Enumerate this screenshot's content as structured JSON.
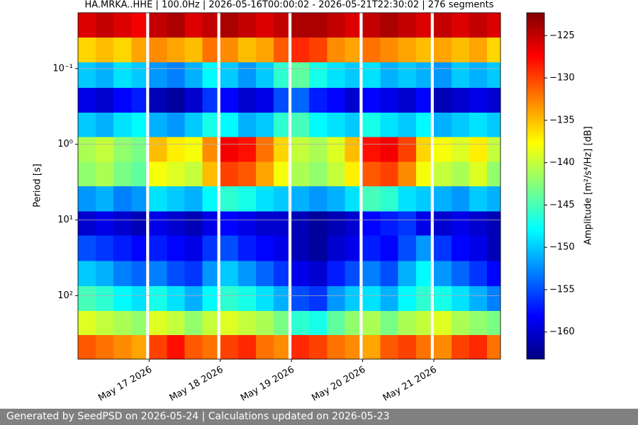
{
  "chart_data": {
    "type": "heatmap",
    "title": "HA.MRKA..HHE | 100.0Hz | 2026-05-16T00:00:02 - 2026-05-21T22:30:02 | 276 segments",
    "ylabel": "Period [s]",
    "colorbar_label": "Amplitude [m²/s⁴/Hz] [dB]",
    "colormap": "jet",
    "yscale": "log",
    "y_inverted": true,
    "grid": true,
    "xlim": [
      "2026-05-16T00:00",
      "2026-05-21T22:30"
    ],
    "ylim": [
      0.0183,
      690
    ],
    "clim": [
      -163.2,
      -122.3
    ],
    "xticks": [
      {
        "value": "2026-05-17T00:00",
        "label": "May 17 2026"
      },
      {
        "value": "2026-05-18T00:00",
        "label": "May 18 2026"
      },
      {
        "value": "2026-05-19T00:00",
        "label": "May 19 2026"
      },
      {
        "value": "2026-05-20T00:00",
        "label": "May 20 2026"
      },
      {
        "value": "2026-05-21T00:00",
        "label": "May 21 2026"
      }
    ],
    "yticks": [
      {
        "value": 0.1,
        "label": "10⁻¹"
      },
      {
        "value": 1,
        "label": "10⁰"
      },
      {
        "value": 10,
        "label": "10¹"
      },
      {
        "value": 100,
        "label": "10²"
      }
    ],
    "cticks": [
      {
        "value": -125,
        "label": "−125"
      },
      {
        "value": -130,
        "label": "−130"
      },
      {
        "value": -135,
        "label": "−135"
      },
      {
        "value": -140,
        "label": "−140"
      },
      {
        "value": -145,
        "label": "−145"
      },
      {
        "value": -150,
        "label": "−150"
      },
      {
        "value": -155,
        "label": "−155"
      },
      {
        "value": -160,
        "label": "−160"
      }
    ],
    "x_bins": [
      "2026-05-16T00:00",
      "2026-05-16T06:00",
      "2026-05-16T12:00",
      "2026-05-16T18:00",
      "2026-05-17T00:00",
      "2026-05-17T06:00",
      "2026-05-17T12:00",
      "2026-05-17T18:00",
      "2026-05-18T00:00",
      "2026-05-18T06:00",
      "2026-05-18T12:00",
      "2026-05-18T18:00",
      "2026-05-19T00:00",
      "2026-05-19T06:00",
      "2026-05-19T12:00",
      "2026-05-19T18:00",
      "2026-05-20T00:00",
      "2026-05-20T06:00",
      "2026-05-20T12:00",
      "2026-05-20T18:00",
      "2026-05-21T00:00",
      "2026-05-21T06:00",
      "2026-05-21T12:00",
      "2026-05-21T18:00",
      "2026-05-21T22:30"
    ],
    "y_bins": [
      0.0183,
      0.039,
      0.083,
      0.18,
      0.38,
      0.8,
      1.7,
      3.6,
      7.7,
      16,
      35,
      75,
      160,
      330,
      690
    ],
    "z": [
      [
        -126,
        -125,
        -126,
        -127,
        -125,
        -124,
        -126,
        -125,
        -124,
        -125,
        -126,
        -125,
        -124,
        -124,
        -125,
        -126,
        -125,
        -124,
        -125,
        -126,
        -125,
        -126,
        -125,
        -126
      ],
      [
        -136,
        -135,
        -136,
        -134,
        -133,
        -134,
        -135,
        -132,
        -133,
        -135,
        -134,
        -131,
        -129,
        -130,
        -133,
        -134,
        -132,
        -133,
        -134,
        -135,
        -134,
        -135,
        -134,
        -136
      ],
      [
        -150,
        -151,
        -149,
        -150,
        -152,
        -153,
        -151,
        -148,
        -150,
        -152,
        -150,
        -146,
        -144,
        -147,
        -149,
        -150,
        -149,
        -151,
        -150,
        -151,
        -152,
        -150,
        -151,
        -150
      ],
      [
        -159,
        -160,
        -158,
        -157,
        -161,
        -162,
        -160,
        -156,
        -158,
        -160,
        -159,
        -155,
        -154,
        -157,
        -158,
        -160,
        -158,
        -159,
        -160,
        -158,
        -161,
        -160,
        -159,
        -160
      ],
      [
        -150,
        -151,
        -149,
        -148,
        -151,
        -152,
        -150,
        -147,
        -148,
        -151,
        -150,
        -146,
        -145,
        -148,
        -149,
        -150,
        -147,
        -149,
        -150,
        -148,
        -151,
        -150,
        -149,
        -150
      ],
      [
        -141,
        -140,
        -142,
        -143,
        -135,
        -137,
        -138,
        -133,
        -127,
        -128,
        -132,
        -136,
        -140,
        -141,
        -139,
        -135,
        -128,
        -127,
        -130,
        -136,
        -138,
        -139,
        -137,
        -140
      ],
      [
        -142,
        -141,
        -143,
        -144,
        -138,
        -139,
        -140,
        -135,
        -130,
        -131,
        -134,
        -138,
        -141,
        -142,
        -140,
        -137,
        -131,
        -130,
        -133,
        -138,
        -140,
        -141,
        -139,
        -142
      ],
      [
        -152,
        -151,
        -153,
        -152,
        -149,
        -150,
        -151,
        -148,
        -146,
        -147,
        -149,
        -150,
        -151,
        -152,
        -151,
        -149,
        -145,
        -146,
        -149,
        -150,
        -151,
        -152,
        -150,
        -151
      ],
      [
        -160,
        -159,
        -160,
        -161,
        -159,
        -160,
        -161,
        -159,
        -158,
        -159,
        -160,
        -160,
        -161,
        -162,
        -161,
        -160,
        -158,
        -157,
        -156,
        -159,
        -160,
        -159,
        -160,
        -161
      ],
      [
        -155,
        -156,
        -157,
        -158,
        -157,
        -158,
        -159,
        -156,
        -155,
        -157,
        -158,
        -159,
        -161,
        -162,
        -160,
        -159,
        -157,
        -158,
        -155,
        -152,
        -156,
        -158,
        -159,
        -161
      ],
      [
        -150,
        -151,
        -153,
        -154,
        -153,
        -155,
        -156,
        -152,
        -150,
        -152,
        -154,
        -156,
        -159,
        -160,
        -157,
        -155,
        -153,
        -155,
        -151,
        -148,
        -152,
        -154,
        -156,
        -158
      ],
      [
        -145,
        -146,
        -148,
        -149,
        -147,
        -149,
        -151,
        -148,
        -146,
        -147,
        -149,
        -151,
        -155,
        -156,
        -152,
        -150,
        -149,
        -151,
        -148,
        -146,
        -147,
        -149,
        -151,
        -153
      ],
      [
        -139,
        -140,
        -141,
        -142,
        -139,
        -140,
        -142,
        -140,
        -139,
        -140,
        -141,
        -143,
        -146,
        -147,
        -144,
        -142,
        -141,
        -143,
        -141,
        -140,
        -139,
        -141,
        -142,
        -143
      ],
      [
        -131,
        -132,
        -133,
        -134,
        -130,
        -128,
        -131,
        -132,
        -130,
        -129,
        -132,
        -133,
        -129,
        -130,
        -132,
        -133,
        -134,
        -131,
        -130,
        -132,
        -133,
        -130,
        -129,
        -132
      ]
    ],
    "data_gaps": [
      [
        "2026-05-16T23:00",
        "2026-05-17T00:00"
      ],
      [
        "2026-05-17T23:00",
        "2026-05-18T00:00"
      ],
      [
        "2026-05-18T23:00",
        "2026-05-19T00:00"
      ],
      [
        "2026-05-19T23:00",
        "2026-05-20T00:00"
      ],
      [
        "2026-05-20T23:00",
        "2026-05-21T00:00"
      ]
    ]
  },
  "footer": "Generated by SeedPSD on 2026-05-24 | Calculations updated on 2026-05-23"
}
